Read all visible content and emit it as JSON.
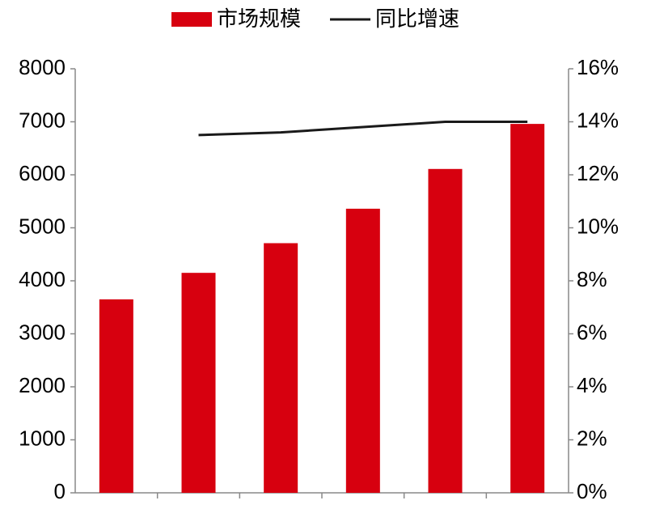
{
  "chart_data": {
    "type": "bar-line",
    "categories": [
      null,
      null,
      null,
      null,
      null,
      null
    ],
    "series": [
      {
        "name": "市场规模",
        "type": "bar",
        "color": "#d7000f",
        "values": [
          3650,
          4150,
          4710,
          5360,
          6110,
          6960
        ]
      },
      {
        "name": "同比增速",
        "type": "line",
        "color": "#1a1a1a",
        "axis": "y2",
        "values": [
          null,
          13.5,
          13.6,
          13.8,
          14.0,
          14.0
        ]
      }
    ],
    "ylim": [
      0,
      8000
    ],
    "yticks": [
      0,
      1000,
      2000,
      3000,
      4000,
      5000,
      6000,
      7000,
      8000
    ],
    "y2lim": [
      0,
      16
    ],
    "y2ticks": [
      {
        "value": 0,
        "label": "0%"
      },
      {
        "value": 2,
        "label": "2%"
      },
      {
        "value": 4,
        "label": "4%"
      },
      {
        "value": 6,
        "label": "6%"
      },
      {
        "value": 8,
        "label": "8%"
      },
      {
        "value": 10,
        "label": "10%"
      },
      {
        "value": 12,
        "label": "12%"
      },
      {
        "value": 14,
        "label": "14%"
      },
      {
        "value": 16,
        "label": "16%"
      }
    ],
    "legend": "top"
  }
}
